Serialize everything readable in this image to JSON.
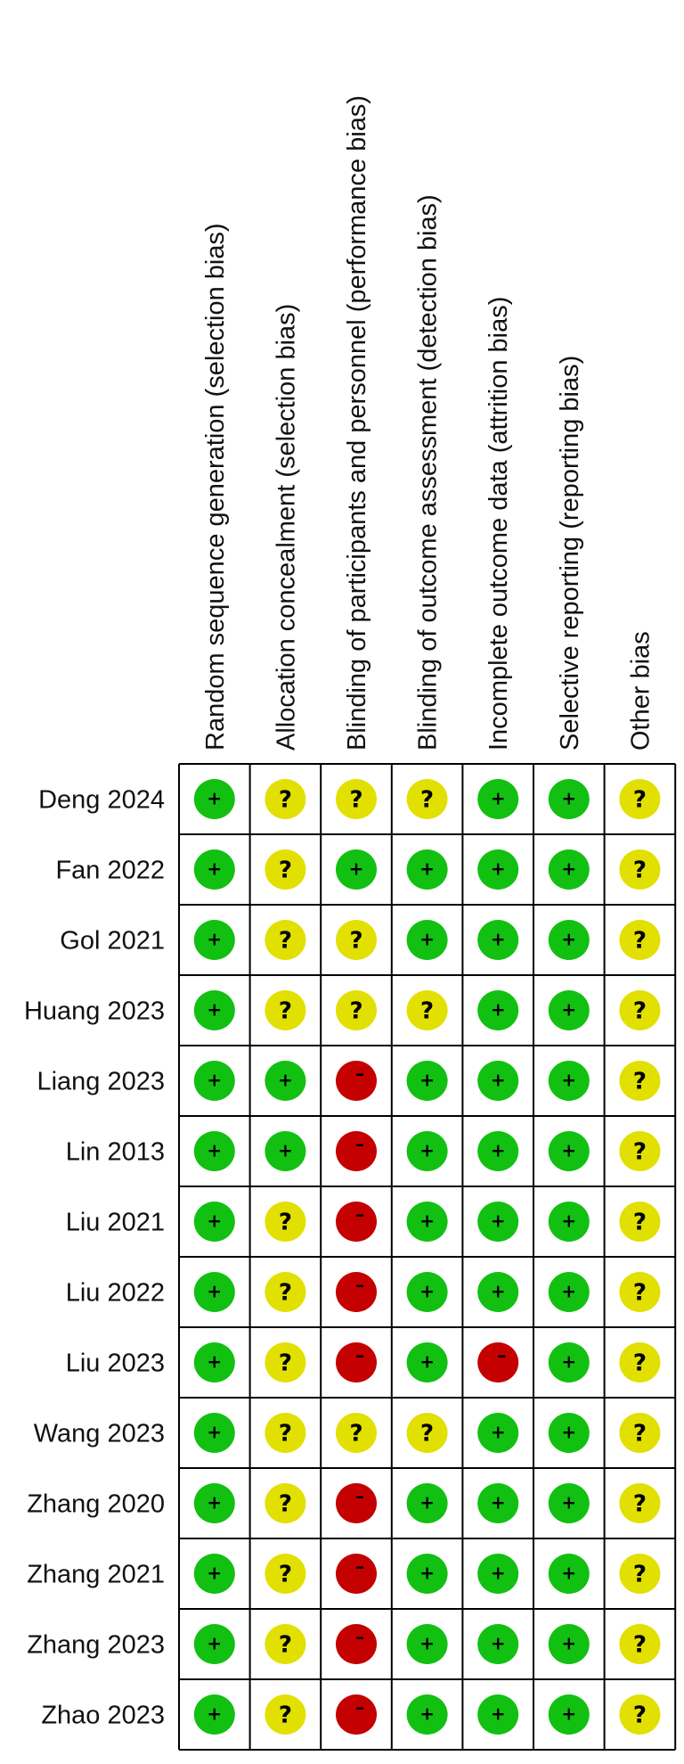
{
  "chart_data": {
    "type": "table",
    "domains": [
      "Random sequence generation (selection bias)",
      "Allocation concealment (selection bias)",
      "Blinding of participants and personnel (performance bias)",
      "Blinding of outcome assessment (detection bias)",
      "Incomplete outcome data (attrition bias)",
      "Selective reporting (reporting bias)",
      "Other bias"
    ],
    "studies": [
      {
        "name": "Deng 2024",
        "ratings": [
          "+",
          "?",
          "?",
          "?",
          "+",
          "+",
          "?"
        ]
      },
      {
        "name": "Fan 2022",
        "ratings": [
          "+",
          "?",
          "+",
          "+",
          "+",
          "+",
          "?"
        ]
      },
      {
        "name": "Gol 2021",
        "ratings": [
          "+",
          "?",
          "?",
          "+",
          "+",
          "+",
          "?"
        ]
      },
      {
        "name": "Huang 2023",
        "ratings": [
          "+",
          "?",
          "?",
          "?",
          "+",
          "+",
          "?"
        ]
      },
      {
        "name": "Liang 2023",
        "ratings": [
          "+",
          "+",
          "-",
          "+",
          "+",
          "+",
          "?"
        ]
      },
      {
        "name": "Lin 2013",
        "ratings": [
          "+",
          "+",
          "-",
          "+",
          "+",
          "+",
          "?"
        ]
      },
      {
        "name": "Liu 2021",
        "ratings": [
          "+",
          "?",
          "-",
          "+",
          "+",
          "+",
          "?"
        ]
      },
      {
        "name": "Liu 2022",
        "ratings": [
          "+",
          "?",
          "-",
          "+",
          "+",
          "+",
          "?"
        ]
      },
      {
        "name": "Liu 2023",
        "ratings": [
          "+",
          "?",
          "-",
          "+",
          "-",
          "+",
          "?"
        ]
      },
      {
        "name": "Wang 2023",
        "ratings": [
          "+",
          "?",
          "?",
          "?",
          "+",
          "+",
          "?"
        ]
      },
      {
        "name": "Zhang 2020",
        "ratings": [
          "+",
          "?",
          "-",
          "+",
          "+",
          "+",
          "?"
        ]
      },
      {
        "name": "Zhang 2021",
        "ratings": [
          "+",
          "?",
          "-",
          "+",
          "+",
          "+",
          "?"
        ]
      },
      {
        "name": "Zhang 2023",
        "ratings": [
          "+",
          "?",
          "-",
          "+",
          "+",
          "+",
          "?"
        ]
      },
      {
        "name": "Zhao 2023",
        "ratings": [
          "+",
          "?",
          "-",
          "+",
          "+",
          "+",
          "?"
        ]
      }
    ],
    "rating_colors": {
      "+": "#12c012",
      "?": "#e2e000",
      "-": "#c40000"
    },
    "rating_symbols": {
      "+": "+",
      "?": "?",
      "-": "–"
    }
  }
}
